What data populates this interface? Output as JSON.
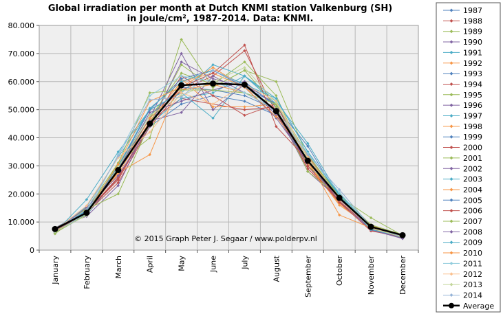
{
  "chart_data": {
    "type": "line",
    "title_line1": "Global irradiation per month at Dutch KNMI  station Valkenburg (SH)",
    "title_line2": "in Joule/cm², 1987-2014. Data: KNMI.",
    "annotation": "© 2015 Graph  Peter J. Segaar / www.polderpv.nl",
    "categories": [
      "January",
      "February",
      "March",
      "April",
      "May",
      "June",
      "July",
      "August",
      "September",
      "October",
      "November",
      "December"
    ],
    "ylim": [
      0,
      80000
    ],
    "yticks": [
      0,
      10000,
      20000,
      30000,
      40000,
      50000,
      60000,
      70000,
      80000
    ],
    "ytick_labels": [
      "0",
      "10.000",
      "20.000",
      "30.000",
      "40.000",
      "50.000",
      "60.000",
      "70.000",
      "80.000"
    ],
    "grid": true,
    "legend": "right",
    "series": [
      {
        "name": "1987",
        "color": "#4f81bd",
        "values": [
          6200,
          12500,
          26000,
          44000,
          52000,
          55000,
          53000,
          48000,
          31000,
          17000,
          8000,
          4500
        ]
      },
      {
        "name": "1988",
        "color": "#c0504d",
        "values": [
          6800,
          13500,
          25500,
          46000,
          54000,
          52000,
          50000,
          51000,
          29000,
          18000,
          7500,
          5000
        ]
      },
      {
        "name": "1989",
        "color": "#9bbb59",
        "values": [
          7500,
          14500,
          31000,
          40000,
          75000,
          58000,
          64000,
          60000,
          33000,
          20000,
          9000,
          5500
        ]
      },
      {
        "name": "1990",
        "color": "#8064a2",
        "values": [
          7000,
          15000,
          28000,
          47000,
          70000,
          50000,
          59000,
          52000,
          30000,
          19000,
          8500,
          4800
        ]
      },
      {
        "name": "1991",
        "color": "#4bacc6",
        "values": [
          6500,
          13000,
          29000,
          45000,
          54000,
          56000,
          62000,
          52000,
          34000,
          17500,
          7800,
          4200
        ]
      },
      {
        "name": "1992",
        "color": "#f79646",
        "values": [
          7200,
          14000,
          27000,
          46000,
          60000,
          63000,
          58000,
          50000,
          31000,
          16000,
          8200,
          5100
        ]
      },
      {
        "name": "1993",
        "color": "#4f81bd",
        "values": [
          6900,
          12800,
          30000,
          48000,
          58000,
          57000,
          55000,
          50000,
          30000,
          18500,
          8000,
          4700
        ]
      },
      {
        "name": "1994",
        "color": "#c0504d",
        "values": [
          6000,
          13200,
          24000,
          44000,
          57000,
          62000,
          71000,
          49000,
          29000,
          18000,
          7000,
          4300
        ]
      },
      {
        "name": "1995",
        "color": "#9bbb59",
        "values": [
          7400,
          14800,
          29500,
          47000,
          63000,
          59000,
          67000,
          55000,
          30000,
          20000,
          8800,
          4900
        ]
      },
      {
        "name": "1996",
        "color": "#8064a2",
        "values": [
          8000,
          12000,
          23000,
          46000,
          49000,
          62000,
          56000,
          50000,
          28000,
          18000,
          7500,
          4600
        ]
      },
      {
        "name": "1997",
        "color": "#4bacc6",
        "values": [
          6300,
          18000,
          35000,
          50000,
          56000,
          47000,
          62000,
          53000,
          38000,
          19500,
          8000,
          4400
        ]
      },
      {
        "name": "1998",
        "color": "#f79646",
        "values": [
          7600,
          14200,
          27500,
          34000,
          61000,
          51000,
          51000,
          52000,
          31000,
          16500,
          7800,
          4500
        ]
      },
      {
        "name": "1999",
        "color": "#4f81bd",
        "values": [
          6600,
          13800,
          29000,
          47000,
          57000,
          57000,
          60000,
          51000,
          37000,
          18500,
          7900,
          4300
        ]
      },
      {
        "name": "2000",
        "color": "#c0504d",
        "values": [
          7100,
          13500,
          26000,
          44000,
          62000,
          55000,
          48000,
          52000,
          30000,
          17000,
          6800,
          4800
        ]
      },
      {
        "name": "2001",
        "color": "#9bbb59",
        "values": [
          5800,
          14500,
          20000,
          45000,
          66000,
          58000,
          64000,
          51000,
          28000,
          19000,
          11500,
          5200
        ]
      },
      {
        "name": "2002",
        "color": "#8064a2",
        "values": [
          6800,
          12600,
          28500,
          49000,
          53000,
          57000,
          60000,
          48000,
          32000,
          17500,
          7200,
          4100
        ]
      },
      {
        "name": "2003",
        "color": "#4bacc6",
        "values": [
          7300,
          15500,
          33000,
          50000,
          56000,
          66000,
          62000,
          54000,
          35000,
          20000,
          8300,
          4700
        ]
      },
      {
        "name": "2004",
        "color": "#f79646",
        "values": [
          6700,
          13100,
          28000,
          47000,
          57000,
          59000,
          56000,
          50000,
          32000,
          12500,
          7900,
          4600
        ]
      },
      {
        "name": "2005",
        "color": "#4f81bd",
        "values": [
          7900,
          14000,
          29500,
          50000,
          61000,
          64000,
          58000,
          52000,
          33000,
          18800,
          8500,
          5000
        ]
      },
      {
        "name": "2006",
        "color": "#c0504d",
        "values": [
          6400,
          13600,
          25000,
          45000,
          58000,
          63000,
          73000,
          44000,
          32000,
          17200,
          8100,
          4700
        ]
      },
      {
        "name": "2007",
        "color": "#9bbb59",
        "values": [
          6100,
          12700,
          31000,
          56000,
          57000,
          57000,
          56000,
          52000,
          34000,
          19000,
          8400,
          4400
        ]
      },
      {
        "name": "2008",
        "color": "#8064a2",
        "values": [
          6900,
          15200,
          26500,
          44000,
          67000,
          61000,
          58000,
          47000,
          31500,
          18100,
          7400,
          4200
        ]
      },
      {
        "name": "2009",
        "color": "#4bacc6",
        "values": [
          7400,
          13900,
          30000,
          50500,
          60000,
          64000,
          59000,
          54000,
          35000,
          19400,
          7300,
          4800
        ]
      },
      {
        "name": "2010",
        "color": "#f79646",
        "values": [
          7800,
          13400,
          30500,
          53000,
          58000,
          65000,
          58000,
          47500,
          33500,
          18300,
          8700,
          5200
        ]
      },
      {
        "name": "2011",
        "color": "#93cddd",
        "values": [
          6500,
          13000,
          34000,
          55000,
          62000,
          60000,
          56000,
          50000,
          34500,
          20500,
          8200,
          5000
        ]
      },
      {
        "name": "2012",
        "color": "#fac08f",
        "values": [
          7000,
          15800,
          33000,
          42000,
          56000,
          52000,
          59000,
          53000,
          33000,
          17800,
          8000,
          4900
        ]
      },
      {
        "name": "2013",
        "color": "#c3d69b",
        "values": [
          6600,
          12300,
          29500,
          48000,
          55000,
          60000,
          65000,
          52500,
          32500,
          18900,
          7800,
          4600
        ]
      },
      {
        "name": "2014",
        "color": "#95b3d7",
        "values": [
          7300,
          14400,
          33500,
          53500,
          54500,
          64000,
          58500,
          49000,
          34000,
          21500,
          8400,
          4700
        ]
      },
      {
        "name": "Average",
        "color": "#000000",
        "values": [
          7500,
          13300,
          28500,
          45000,
          58700,
          59300,
          58900,
          49500,
          31800,
          18600,
          8300,
          5300
        ]
      }
    ]
  }
}
